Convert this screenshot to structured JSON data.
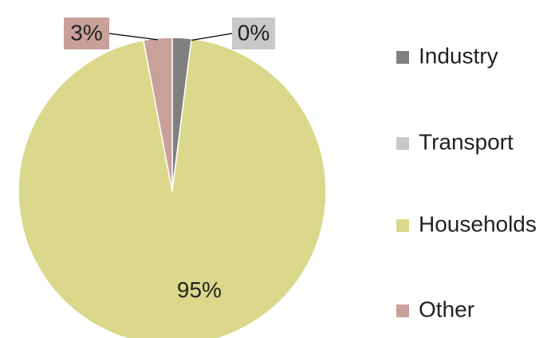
{
  "chart_data": {
    "type": "pie",
    "categories": [
      "Industry",
      "Transport",
      "Households",
      "Other"
    ],
    "values": [
      2,
      0,
      95,
      3
    ],
    "value_labels": [
      null,
      "0%",
      "95%",
      "3%"
    ],
    "colors": [
      "#7f7f7f",
      "#c8c8c8",
      "#dbd88b",
      "#c9a09a"
    ],
    "legend": "right"
  }
}
